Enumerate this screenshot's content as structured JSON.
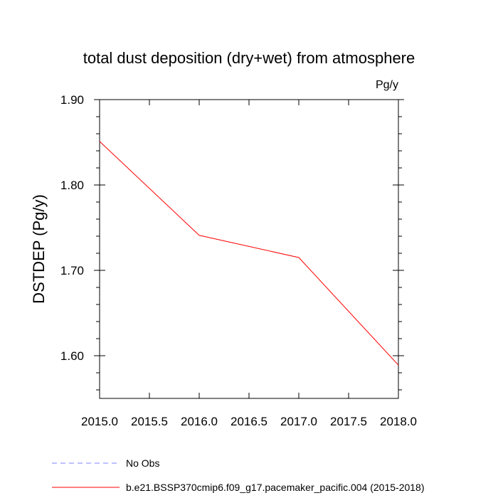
{
  "chart_data": {
    "type": "line",
    "title": "total dust deposition (dry+wet) from atmosphere",
    "units_label": "Pg/y",
    "ylabel": "DSTDEP  (Pg/y)",
    "xlabel": "",
    "xlim": [
      2015.0,
      2018.0
    ],
    "ylim": [
      1.55,
      1.9
    ],
    "x_ticks": [
      2015.0,
      2015.5,
      2016.0,
      2016.5,
      2017.0,
      2017.5,
      2018.0
    ],
    "x_tick_labels": [
      "2015.0",
      "2015.5",
      "2016.0",
      "2016.5",
      "2017.0",
      "2017.5",
      "2018.0"
    ],
    "x_minor_ticks": [],
    "y_ticks": [
      1.6,
      1.7,
      1.8,
      1.9
    ],
    "y_tick_labels": [
      "1.60",
      "1.70",
      "1.80",
      "1.90"
    ],
    "y_minor_ticks": [
      1.56,
      1.58,
      1.62,
      1.64,
      1.66,
      1.68,
      1.72,
      1.74,
      1.76,
      1.78,
      1.82,
      1.84,
      1.86,
      1.88
    ],
    "grid": false,
    "legend_position": "bottom-left, below plot",
    "series": [
      {
        "name": "b.e21.BSSP370cmip6.f09_g17.pacemaker_pacific.004 (2015-2018)",
        "color": "#ff0000",
        "dash": "solid",
        "x": [
          2015.0,
          2016.0,
          2017.0,
          2018.0
        ],
        "y": [
          1.851,
          1.741,
          1.715,
          1.589
        ]
      }
    ],
    "legend": [
      {
        "label": "No Obs",
        "color": "#8080ff",
        "dash": "dashed"
      },
      {
        "label": "b.e21.BSSP370cmip6.f09_g17.pacemaker_pacific.004 (2015-2018)",
        "color": "#ff0000",
        "dash": "solid"
      }
    ]
  }
}
